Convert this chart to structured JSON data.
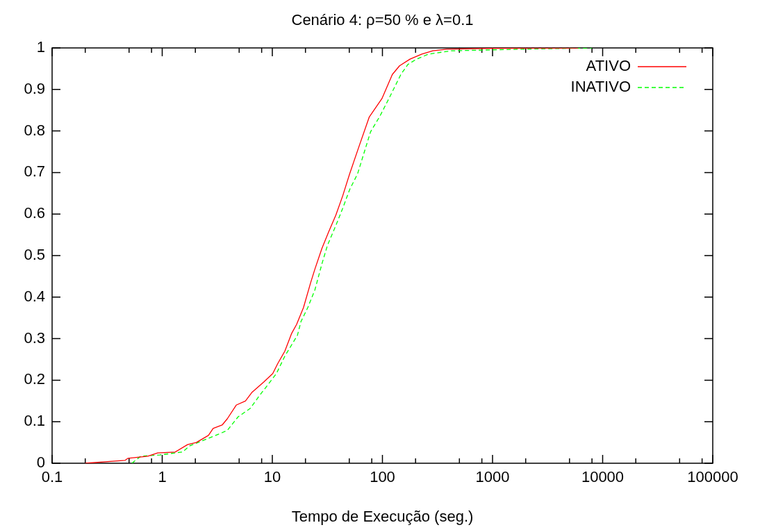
{
  "chart_data": {
    "type": "line",
    "title": "Cenário 4: ρ=50 % e λ=0.1",
    "xlabel": "Tempo de Execução (seg.)",
    "log": "x",
    "grid": false,
    "legend": "top right",
    "marker": "none",
    "xlim": [
      0.1,
      100000
    ],
    "ylim": [
      0,
      1
    ],
    "xticks": [
      0.1,
      {
        "value": 0.2,
        "label": null
      },
      {
        "value": 0.5,
        "label": null
      },
      {
        "value": 0.8,
        "label": null
      },
      1,
      {
        "value": 2,
        "label": null
      },
      {
        "value": 5,
        "label": null
      },
      {
        "value": 8,
        "label": null
      },
      10,
      {
        "value": 20,
        "label": null
      },
      {
        "value": 50,
        "label": null
      },
      {
        "value": 80,
        "label": null
      },
      100,
      {
        "value": 200,
        "label": null
      },
      {
        "value": 500,
        "label": null
      },
      {
        "value": 800,
        "label": null
      },
      1000,
      {
        "value": 2000,
        "label": null
      },
      {
        "value": 5000,
        "label": null
      },
      {
        "value": 8000,
        "label": null
      },
      10000,
      {
        "value": 20000,
        "label": null
      },
      {
        "value": 50000,
        "label": null
      },
      {
        "value": 80000,
        "label": null
      },
      100000
    ],
    "yticks": [
      0,
      0.1,
      0.2,
      0.3,
      0.4,
      0.5,
      0.6,
      0.7,
      0.8,
      0.9,
      1
    ],
    "series": [
      {
        "name": "ATIVO",
        "color": "#ff0000",
        "line_style": "solid",
        "x": [
          0.2,
          0.46,
          0.49,
          0.74,
          0.91,
          1.31,
          1.7,
          2.04,
          2.63,
          2.9,
          3.5,
          3.9,
          4.7,
          5.7,
          6.5,
          8.4,
          10.1,
          11.2,
          13.0,
          15.0,
          16.6,
          19.2,
          22.3,
          24.4,
          28.2,
          32.6,
          37.7,
          43.6,
          50.4,
          61.5,
          76,
          99,
          123,
          143,
          178,
          228,
          287,
          383,
          1000,
          6000
        ],
        "values": [
          0,
          0.007,
          0.012,
          0.017,
          0.025,
          0.027,
          0.045,
          0.05,
          0.067,
          0.084,
          0.092,
          0.107,
          0.14,
          0.15,
          0.17,
          0.196,
          0.216,
          0.24,
          0.27,
          0.313,
          0.334,
          0.375,
          0.435,
          0.468,
          0.517,
          0.558,
          0.597,
          0.644,
          0.697,
          0.764,
          0.834,
          0.878,
          0.936,
          0.957,
          0.973,
          0.985,
          0.993,
          0.997,
          0.999,
          1
        ]
      },
      {
        "name": "INATIVO",
        "color": "#00ff00",
        "line_style": "dashed",
        "x": [
          0.53,
          0.64,
          0.95,
          1.53,
          1.78,
          2.75,
          3.9,
          4.9,
          6.3,
          7.6,
          9.3,
          10.9,
          13,
          16.9,
          18.2,
          21,
          24.4,
          28.2,
          31.7,
          37.7,
          43.6,
          50.4,
          59.5,
          78,
          95,
          116,
          147,
          170,
          204,
          262,
          420,
          1800,
          8000
        ],
        "values": [
          0,
          0.017,
          0.02,
          0.027,
          0.042,
          0.062,
          0.079,
          0.112,
          0.132,
          0.162,
          0.192,
          0.216,
          0.258,
          0.308,
          0.341,
          0.375,
          0.418,
          0.48,
          0.525,
          0.572,
          0.614,
          0.659,
          0.697,
          0.798,
          0.836,
          0.881,
          0.936,
          0.96,
          0.973,
          0.985,
          0.993,
          0.997,
          1
        ]
      }
    ]
  }
}
